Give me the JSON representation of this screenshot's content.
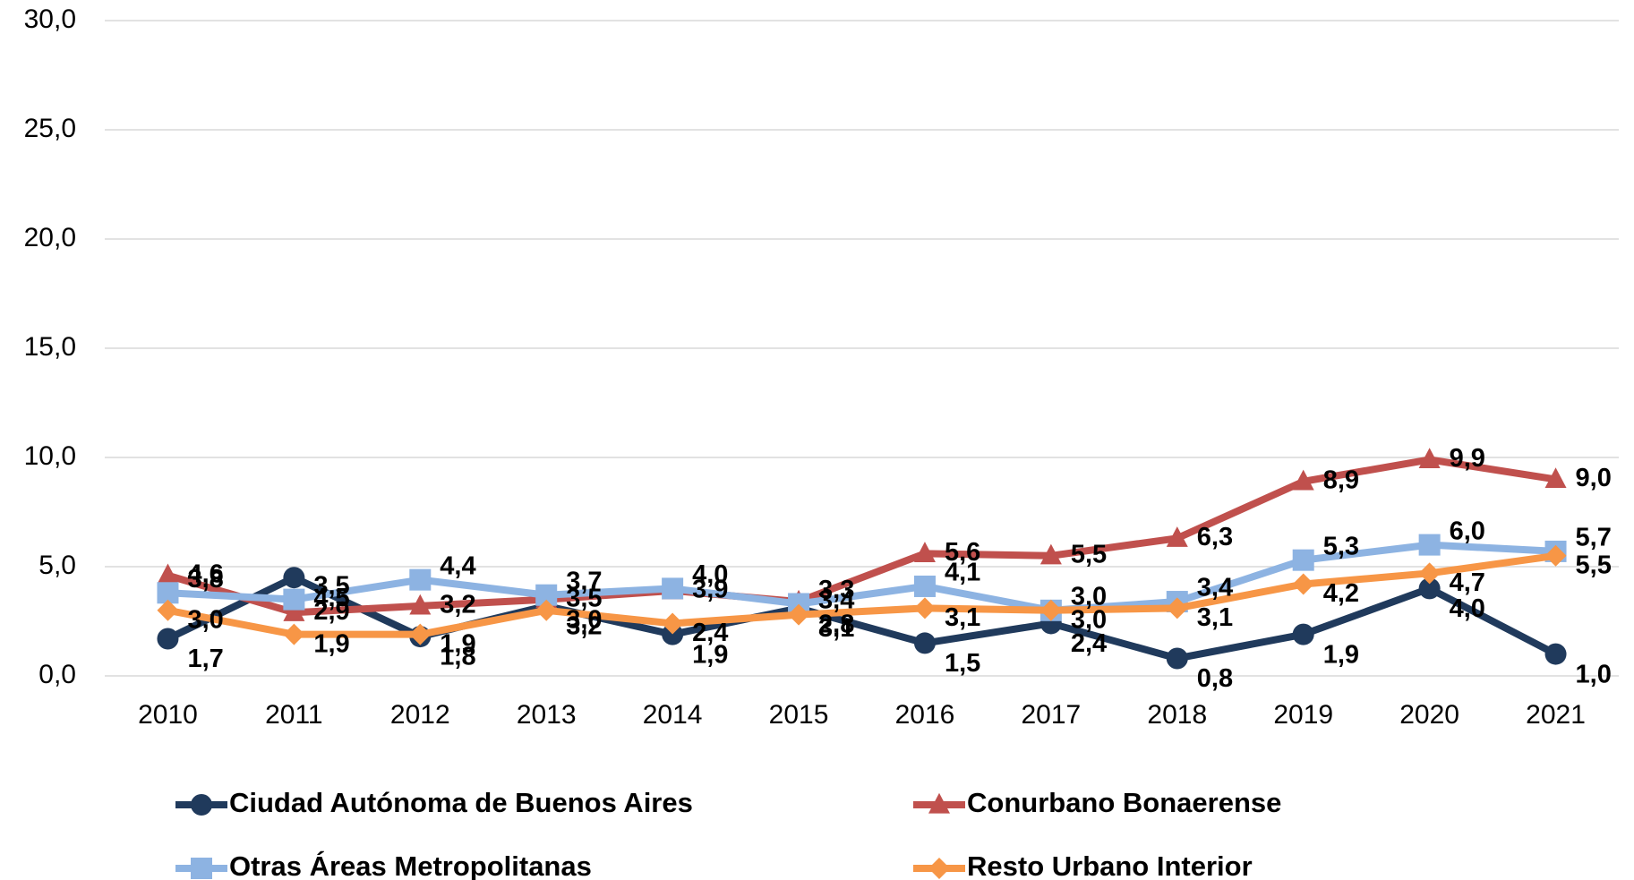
{
  "chart_data": {
    "type": "line",
    "categories": [
      "2010",
      "2011",
      "2012",
      "2013",
      "2014",
      "2015",
      "2016",
      "2017",
      "2018",
      "2019",
      "2020",
      "2021"
    ],
    "series": [
      {
        "name": "Ciudad Autónoma de Buenos Aires",
        "color": "#203a5c",
        "marker": "circle",
        "values": [
          1.7,
          4.5,
          1.8,
          3.2,
          1.9,
          3.1,
          1.5,
          2.4,
          0.8,
          1.9,
          4.0,
          1.0
        ],
        "value_labels": [
          "1,7",
          "4,5",
          "1,8",
          "3,2",
          "1,9",
          "3,1",
          "1,5",
          "2,4",
          "0,8",
          "1,9",
          "4,0",
          "1,0"
        ]
      },
      {
        "name": "Conurbano Bonaerense",
        "color": "#c0504d",
        "marker": "triangle",
        "values": [
          4.6,
          2.9,
          3.2,
          3.5,
          3.9,
          3.4,
          5.6,
          5.5,
          6.3,
          8.9,
          9.9,
          9.0
        ],
        "value_labels": [
          "4,6",
          "2,9",
          "3,2",
          "3,5",
          "3,9",
          "3,4",
          "5,6",
          "5,5",
          "6,3",
          "8,9",
          "9,9",
          "9,0"
        ]
      },
      {
        "name": "Otras Áreas Metropolitanas",
        "color": "#8db3e2",
        "marker": "square",
        "values": [
          3.8,
          3.5,
          4.4,
          3.7,
          4.0,
          3.3,
          4.1,
          3.0,
          3.4,
          5.3,
          6.0,
          5.7
        ],
        "value_labels": [
          "3,8",
          "3,5",
          "4,4",
          "3,7",
          "4,0",
          "3,3",
          "4,1",
          "3,0",
          "3,4",
          "5,3",
          "6,0",
          "5,7"
        ]
      },
      {
        "name": "Resto Urbano Interior",
        "color": "#f79646",
        "marker": "diamond",
        "values": [
          3.0,
          1.9,
          1.9,
          3.0,
          2.4,
          2.8,
          3.1,
          3.0,
          3.1,
          4.2,
          4.7,
          5.5
        ],
        "value_labels": [
          "3,0",
          "1,9",
          "1,9",
          "3,0",
          "2,4",
          "2,8",
          "3,1",
          "3,0",
          "3,1",
          "4,2",
          "4,7",
          "5,5"
        ]
      }
    ],
    "ylim": [
      0,
      30
    ],
    "yticks": [
      {
        "value": 0,
        "label": "0,0"
      },
      {
        "value": 5,
        "label": "5,0"
      },
      {
        "value": 10,
        "label": "10,0"
      },
      {
        "value": 15,
        "label": "15,0"
      },
      {
        "value": 20,
        "label": "20,0"
      },
      {
        "value": 25,
        "label": "25,0"
      },
      {
        "value": 30,
        "label": "30,0"
      }
    ],
    "grid": true,
    "legend": "bottom"
  }
}
